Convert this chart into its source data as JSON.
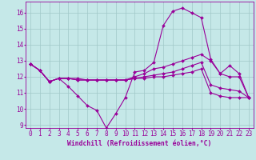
{
  "xlabel": "Windchill (Refroidissement éolien,°C)",
  "bg_color": "#c5e8e8",
  "line_color": "#990099",
  "grid_color": "#a0c8c8",
  "xlim": [
    -0.5,
    23.5
  ],
  "ylim": [
    8.8,
    16.7
  ],
  "yticks": [
    9,
    10,
    11,
    12,
    13,
    14,
    15,
    16
  ],
  "xticks": [
    0,
    1,
    2,
    3,
    4,
    5,
    6,
    7,
    8,
    9,
    10,
    11,
    12,
    13,
    14,
    15,
    16,
    17,
    18,
    19,
    20,
    21,
    22,
    23
  ],
  "series": [
    [
      12.8,
      12.4,
      11.7,
      11.9,
      11.4,
      10.8,
      10.2,
      9.9,
      8.8,
      9.7,
      10.7,
      12.3,
      12.4,
      12.9,
      15.2,
      16.1,
      16.3,
      16.0,
      15.7,
      13.1,
      12.2,
      12.7,
      12.2,
      10.7
    ],
    [
      12.8,
      12.4,
      11.7,
      11.9,
      11.9,
      11.9,
      11.8,
      11.8,
      11.8,
      11.8,
      11.8,
      12.0,
      12.2,
      12.5,
      12.6,
      12.8,
      13.0,
      13.2,
      13.4,
      13.0,
      12.2,
      12.0,
      12.0,
      10.7
    ],
    [
      12.8,
      12.4,
      11.7,
      11.9,
      11.9,
      11.8,
      11.8,
      11.8,
      11.8,
      11.8,
      11.8,
      11.9,
      12.0,
      12.1,
      12.2,
      12.3,
      12.5,
      12.7,
      12.9,
      11.5,
      11.3,
      11.2,
      11.1,
      10.7
    ],
    [
      12.8,
      12.4,
      11.7,
      11.9,
      11.9,
      11.8,
      11.8,
      11.8,
      11.8,
      11.8,
      11.8,
      11.9,
      11.9,
      12.0,
      12.0,
      12.1,
      12.2,
      12.3,
      12.5,
      11.0,
      10.8,
      10.7,
      10.7,
      10.7
    ]
  ],
  "tick_fontsize": 5.5,
  "xlabel_fontsize": 5.8,
  "marker_size": 2.0,
  "line_width": 0.8
}
